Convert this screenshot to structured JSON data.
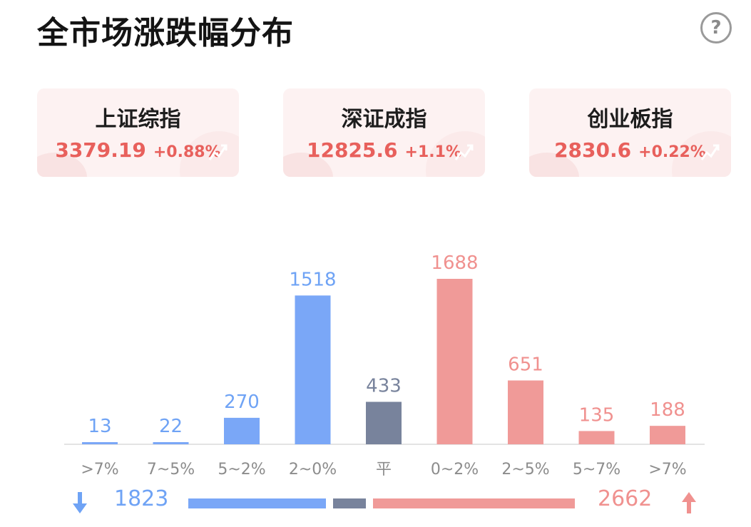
{
  "title": "全市场涨跌幅分布",
  "help_icon": "question-circle-icon",
  "indices": [
    {
      "name": "上证综指",
      "price": "3379.19",
      "change": "+0.88%",
      "icon": "trend-up-icon"
    },
    {
      "name": "深证成指",
      "price": "12825.6",
      "change": "+1.1%",
      "icon": "trend-up-icon"
    },
    {
      "name": "创业板指",
      "price": "2830.6",
      "change": "+0.22%",
      "icon": "trend-up-icon"
    }
  ],
  "colors": {
    "down": "#7aa7f7",
    "flat": "#78839c",
    "up": "#f09a98",
    "down_text": "#6fa3f5",
    "up_text": "#f0918f",
    "index_text": "#e8605c"
  },
  "chart_data": {
    "type": "bar",
    "categories": [
      ">7%",
      "7~5%",
      "5~2%",
      "2~0%",
      "平",
      "0~2%",
      "2~5%",
      "5~7%",
      ">7%"
    ],
    "values": [
      13,
      22,
      270,
      1518,
      433,
      1688,
      651,
      135,
      188
    ],
    "groups": [
      "down",
      "down",
      "down",
      "down",
      "flat",
      "up",
      "up",
      "up",
      "up"
    ],
    "ylim": [
      0,
      1688
    ]
  },
  "summary": {
    "down_count": "1823",
    "up_count": "2662",
    "down_icon": "arrow-down-icon",
    "up_icon": "arrow-up-icon"
  }
}
